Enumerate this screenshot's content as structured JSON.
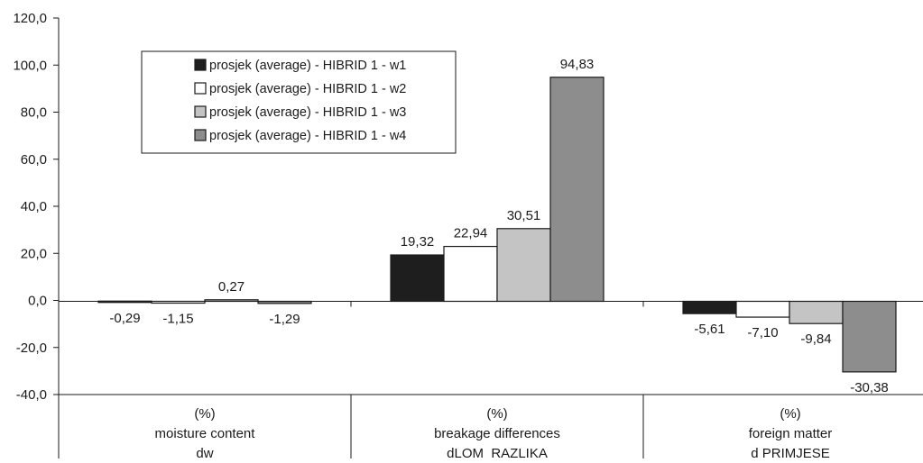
{
  "chart_data": {
    "type": "bar",
    "title": "",
    "xlabel": "",
    "ylabel": "",
    "ylim": [
      -40,
      120
    ],
    "ytick_values": [
      -40,
      -20,
      0,
      20,
      40,
      60,
      80,
      100,
      120
    ],
    "ytick_labels": [
      "-40,0",
      "-20,0",
      "0,0",
      "20,0",
      "40,0",
      "60,0",
      "80,0",
      "100,0",
      "120,0"
    ],
    "grid": false,
    "legend_position": "top-left",
    "categories": [
      [
        "(%)",
        "moisture content",
        "dw"
      ],
      [
        "(%)",
        "breakage  differences",
        "dLOM_RAZLIKA"
      ],
      [
        "(%)",
        "foreign matter",
        "d PRIMJESE"
      ]
    ],
    "series": [
      {
        "name": "prosjek (average) - HIBRID 1 - w1",
        "color": "#1e1e1e",
        "values": [
          -0.29,
          19.32,
          -5.61
        ],
        "labels": [
          "-0,29",
          "19,32",
          "-5,61"
        ]
      },
      {
        "name": "prosjek (average) - HIBRID 1 - w2",
        "color": "#ffffff",
        "values": [
          -1.15,
          22.94,
          -7.1
        ],
        "labels": [
          "-1,15",
          "22,94",
          "-7,10"
        ]
      },
      {
        "name": "prosjek (average) - HIBRID 1 - w3",
        "color": "#c4c4c4",
        "values": [
          0.27,
          30.51,
          -9.84
        ],
        "labels": [
          "0,27",
          "30,51",
          "-9,84"
        ]
      },
      {
        "name": "prosjek (average) - HIBRID 1 - w4",
        "color": "#8d8d8d",
        "values": [
          -1.29,
          94.83,
          -30.38
        ],
        "labels": [
          "-1,29",
          "94,83",
          "-30,38"
        ]
      }
    ]
  }
}
